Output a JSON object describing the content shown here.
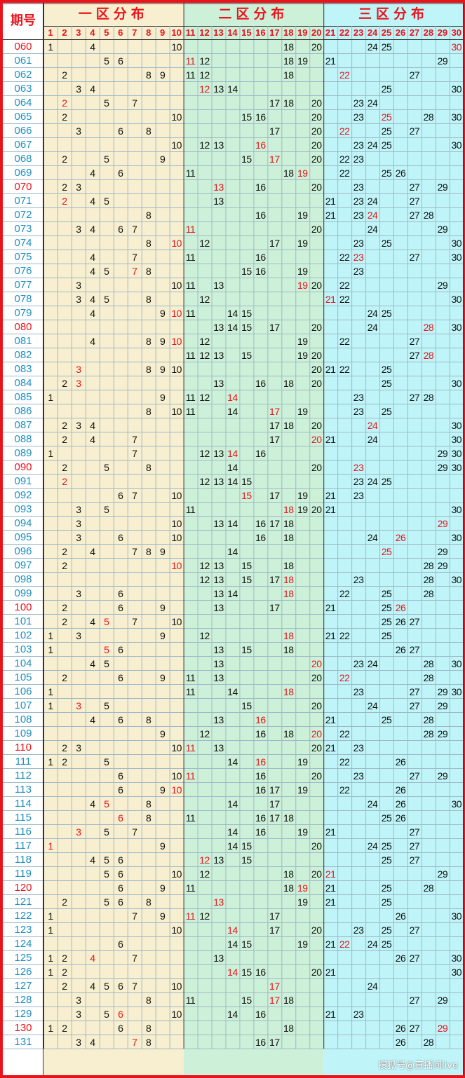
{
  "header": {
    "period_label": "期号",
    "zones": [
      {
        "label": "一区分布",
        "from": 1,
        "to": 10,
        "bg": "#f7efcf"
      },
      {
        "label": "二区分布",
        "from": 11,
        "to": 20,
        "bg": "#cdf1d8"
      },
      {
        "label": "三区分布",
        "from": 21,
        "to": 30,
        "bg": "#bff5f8"
      }
    ],
    "columns": [
      1,
      2,
      3,
      4,
      5,
      6,
      7,
      8,
      9,
      10,
      11,
      12,
      13,
      14,
      15,
      16,
      17,
      18,
      19,
      20,
      21,
      22,
      23,
      24,
      25,
      26,
      27,
      28,
      29,
      30
    ]
  },
  "colors": {
    "accent_red": "#e8141c",
    "period_blue": "#1f8fbf",
    "number_black": "#111111",
    "grid_line": "#9fb8c8"
  },
  "watermark": "搜狐号@直播间live",
  "chart_data": {
    "type": "table",
    "title": "",
    "red_periods": [
      "060",
      "070",
      "080",
      "090",
      "100",
      "110",
      "120",
      "130"
    ],
    "rows": [
      {
        "period": "060",
        "nums": [
          1,
          4,
          10,
          18,
          20,
          24,
          25,
          30
        ],
        "red": [
          30
        ]
      },
      {
        "period": "061",
        "nums": [
          5,
          6,
          11,
          12,
          18,
          19,
          21,
          29
        ],
        "red": [
          11
        ]
      },
      {
        "period": "062",
        "nums": [
          2,
          8,
          9,
          11,
          12,
          18,
          22,
          27
        ],
        "red": [
          22
        ]
      },
      {
        "period": "063",
        "nums": [
          3,
          4,
          12,
          13,
          14,
          25,
          30
        ],
        "red": [
          12
        ]
      },
      {
        "period": "064",
        "nums": [
          2,
          5,
          7,
          17,
          18,
          20,
          23,
          24
        ],
        "red": [
          2
        ]
      },
      {
        "period": "065",
        "nums": [
          2,
          10,
          15,
          16,
          20,
          23,
          25,
          28,
          30
        ],
        "red": [
          25
        ]
      },
      {
        "period": "066",
        "nums": [
          3,
          6,
          8,
          17,
          20,
          22,
          25,
          27
        ],
        "red": [
          22
        ]
      },
      {
        "period": "067",
        "nums": [
          10,
          12,
          13,
          16,
          20,
          23,
          24,
          25,
          30
        ],
        "red": [
          16
        ]
      },
      {
        "period": "068",
        "nums": [
          2,
          5,
          9,
          15,
          17,
          20,
          22,
          23
        ],
        "red": [
          17
        ]
      },
      {
        "period": "069",
        "nums": [
          4,
          6,
          11,
          18,
          19,
          22,
          25,
          26
        ],
        "red": [
          19
        ]
      },
      {
        "period": "070",
        "nums": [
          2,
          3,
          13,
          16,
          20,
          23,
          27,
          29
        ],
        "red": [
          13
        ]
      },
      {
        "period": "071",
        "nums": [
          2,
          4,
          5,
          13,
          21,
          23,
          24,
          27
        ],
        "red": [
          2
        ]
      },
      {
        "period": "072",
        "nums": [
          8,
          16,
          19,
          21,
          23,
          24,
          27,
          28
        ],
        "red": [
          24
        ]
      },
      {
        "period": "073",
        "nums": [
          3,
          4,
          6,
          7,
          11,
          20,
          24,
          29
        ],
        "red": [
          11
        ]
      },
      {
        "period": "074",
        "nums": [
          8,
          10,
          12,
          17,
          19,
          23,
          25,
          30
        ],
        "red": [
          10
        ]
      },
      {
        "period": "075",
        "nums": [
          4,
          7,
          11,
          16,
          22,
          23,
          27,
          30
        ],
        "red": [
          23
        ]
      },
      {
        "period": "076",
        "nums": [
          4,
          5,
          7,
          8,
          15,
          16,
          19,
          23
        ],
        "red": [
          7
        ]
      },
      {
        "period": "077",
        "nums": [
          3,
          10,
          11,
          13,
          19,
          20,
          22,
          29
        ],
        "red": [
          19
        ]
      },
      {
        "period": "078",
        "nums": [
          3,
          4,
          5,
          8,
          12,
          21,
          22,
          30
        ],
        "red": [
          21
        ]
      },
      {
        "period": "079",
        "nums": [
          4,
          9,
          10,
          11,
          14,
          15,
          24,
          25
        ],
        "red": [
          10
        ]
      },
      {
        "period": "080",
        "nums": [
          13,
          14,
          15,
          17,
          20,
          24,
          28,
          30
        ],
        "red": [
          28
        ]
      },
      {
        "period": "081",
        "nums": [
          4,
          8,
          9,
          10,
          12,
          19,
          22,
          27
        ],
        "red": [
          10
        ]
      },
      {
        "period": "082",
        "nums": [
          11,
          12,
          13,
          15,
          19,
          20,
          27,
          28
        ],
        "red": [
          28
        ]
      },
      {
        "period": "083",
        "nums": [
          3,
          8,
          9,
          10,
          20,
          21,
          22,
          25
        ],
        "red": [
          3
        ]
      },
      {
        "period": "084",
        "nums": [
          2,
          3,
          13,
          16,
          18,
          20,
          25,
          30
        ],
        "red": [
          3
        ]
      },
      {
        "period": "085",
        "nums": [
          1,
          9,
          11,
          12,
          14,
          23,
          27,
          28
        ],
        "red": [
          14
        ]
      },
      {
        "period": "086",
        "nums": [
          8,
          10,
          11,
          14,
          17,
          19,
          23,
          25
        ],
        "red": [
          17
        ]
      },
      {
        "period": "087",
        "nums": [
          2,
          3,
          4,
          17,
          18,
          20,
          24,
          30
        ],
        "red": [
          24
        ]
      },
      {
        "period": "088",
        "nums": [
          2,
          4,
          7,
          17,
          20,
          21,
          24,
          30
        ],
        "red": [
          20
        ]
      },
      {
        "period": "089",
        "nums": [
          1,
          7,
          12,
          13,
          14,
          16,
          29,
          30
        ],
        "red": [
          14
        ]
      },
      {
        "period": "090",
        "nums": [
          2,
          5,
          8,
          14,
          20,
          23,
          29,
          30
        ],
        "red": [
          23
        ]
      },
      {
        "period": "091",
        "nums": [
          2,
          12,
          13,
          14,
          15,
          23,
          24,
          25
        ],
        "red": [
          2
        ]
      },
      {
        "period": "092",
        "nums": [
          6,
          7,
          10,
          15,
          17,
          19,
          21,
          23
        ],
        "red": [
          15
        ]
      },
      {
        "period": "093",
        "nums": [
          3,
          5,
          11,
          18,
          19,
          20,
          21,
          30
        ],
        "red": [
          18
        ]
      },
      {
        "period": "094",
        "nums": [
          3,
          10,
          13,
          14,
          16,
          17,
          18,
          29
        ],
        "red": [
          29
        ]
      },
      {
        "period": "095",
        "nums": [
          3,
          6,
          10,
          16,
          18,
          24,
          26,
          30
        ],
        "red": [
          26
        ]
      },
      {
        "period": "096",
        "nums": [
          2,
          4,
          7,
          8,
          9,
          14,
          25,
          29
        ],
        "red": [
          25
        ]
      },
      {
        "period": "097",
        "nums": [
          2,
          10,
          12,
          13,
          15,
          18,
          28,
          29
        ],
        "red": [
          10
        ]
      },
      {
        "period": "098",
        "nums": [
          12,
          13,
          15,
          17,
          18,
          23,
          28,
          30
        ],
        "red": [
          18
        ]
      },
      {
        "period": "099",
        "nums": [
          3,
          6,
          13,
          14,
          18,
          22,
          25,
          28
        ],
        "red": [
          18
        ]
      },
      {
        "period": "100",
        "nums": [
          2,
          6,
          9,
          13,
          17,
          21,
          25,
          26
        ],
        "red": [
          26
        ]
      },
      {
        "period": "101",
        "nums": [
          2,
          4,
          5,
          7,
          10,
          25,
          26,
          27
        ],
        "red": [
          5
        ]
      },
      {
        "period": "102",
        "nums": [
          1,
          3,
          9,
          12,
          18,
          21,
          22,
          25
        ],
        "red": [
          18
        ]
      },
      {
        "period": "103",
        "nums": [
          1,
          5,
          6,
          13,
          15,
          18,
          26,
          27
        ],
        "red": [
          5
        ]
      },
      {
        "period": "104",
        "nums": [
          4,
          5,
          13,
          20,
          23,
          24,
          28,
          30
        ],
        "red": [
          20
        ]
      },
      {
        "period": "105",
        "nums": [
          2,
          6,
          9,
          11,
          13,
          20,
          22,
          28
        ],
        "red": [
          22
        ]
      },
      {
        "period": "106",
        "nums": [
          1,
          11,
          14,
          18,
          23,
          27,
          29,
          30
        ],
        "red": [
          18
        ]
      },
      {
        "period": "107",
        "nums": [
          1,
          3,
          5,
          15,
          20,
          24,
          27,
          29
        ],
        "red": [
          3
        ]
      },
      {
        "period": "108",
        "nums": [
          4,
          6,
          8,
          13,
          16,
          21,
          25,
          28
        ],
        "red": [
          16
        ]
      },
      {
        "period": "109",
        "nums": [
          9,
          12,
          16,
          18,
          20,
          22,
          28,
          29
        ],
        "red": [
          20
        ]
      },
      {
        "period": "110",
        "nums": [
          2,
          3,
          10,
          11,
          13,
          20,
          21,
          23
        ],
        "red": [
          11
        ]
      },
      {
        "period": "111",
        "nums": [
          1,
          2,
          5,
          14,
          16,
          19,
          22,
          26
        ],
        "red": [
          16
        ]
      },
      {
        "period": "112",
        "nums": [
          6,
          10,
          11,
          16,
          20,
          23,
          27,
          29
        ],
        "red": [
          11
        ]
      },
      {
        "period": "113",
        "nums": [
          6,
          9,
          10,
          16,
          17,
          19,
          22,
          26
        ],
        "red": [
          10
        ]
      },
      {
        "period": "114",
        "nums": [
          4,
          5,
          8,
          14,
          17,
          24,
          26,
          30
        ],
        "red": [
          5
        ]
      },
      {
        "period": "115",
        "nums": [
          6,
          8,
          11,
          16,
          17,
          18,
          25,
          26
        ],
        "red": [
          6
        ]
      },
      {
        "period": "116",
        "nums": [
          3,
          5,
          7,
          14,
          16,
          19,
          21,
          27
        ],
        "red": [
          3
        ]
      },
      {
        "period": "117",
        "nums": [
          1,
          9,
          14,
          15,
          20,
          24,
          25,
          27
        ],
        "red": [
          1
        ]
      },
      {
        "period": "118",
        "nums": [
          4,
          5,
          6,
          12,
          13,
          15,
          25,
          27
        ],
        "red": [
          12
        ]
      },
      {
        "period": "119",
        "nums": [
          5,
          6,
          10,
          12,
          18,
          20,
          21,
          29
        ],
        "red": [
          21
        ]
      },
      {
        "period": "120",
        "nums": [
          6,
          9,
          11,
          18,
          19,
          21,
          25,
          28
        ],
        "red": [
          19
        ]
      },
      {
        "period": "121",
        "nums": [
          2,
          5,
          6,
          8,
          13,
          19,
          21,
          25
        ],
        "red": [
          13
        ]
      },
      {
        "period": "122",
        "nums": [
          1,
          7,
          9,
          11,
          12,
          17,
          26,
          30
        ],
        "red": [
          11
        ]
      },
      {
        "period": "123",
        "nums": [
          1,
          10,
          14,
          17,
          20,
          23,
          25,
          27
        ],
        "red": [
          14
        ]
      },
      {
        "period": "124",
        "nums": [
          6,
          14,
          15,
          19,
          21,
          22,
          24,
          25
        ],
        "red": [
          22
        ]
      },
      {
        "period": "125",
        "nums": [
          1,
          2,
          4,
          7,
          13,
          26,
          27,
          30
        ],
        "red": [
          4
        ]
      },
      {
        "period": "126",
        "nums": [
          1,
          2,
          14,
          15,
          16,
          20,
          21,
          30
        ],
        "red": [
          14
        ]
      },
      {
        "period": "127",
        "nums": [
          2,
          4,
          5,
          6,
          7,
          10,
          17,
          24
        ],
        "red": [
          17
        ]
      },
      {
        "period": "128",
        "nums": [
          3,
          8,
          11,
          15,
          17,
          18,
          27,
          29
        ],
        "red": [
          17
        ]
      },
      {
        "period": "129",
        "nums": [
          3,
          5,
          6,
          10,
          14,
          16,
          21,
          23
        ],
        "red": [
          6
        ]
      },
      {
        "period": "130",
        "nums": [
          1,
          2,
          6,
          8,
          18,
          26,
          27,
          29
        ],
        "red": [
          29
        ]
      },
      {
        "period": "131",
        "nums": [
          3,
          4,
          7,
          8,
          16,
          17,
          26,
          28
        ],
        "red": [
          7
        ]
      }
    ]
  }
}
